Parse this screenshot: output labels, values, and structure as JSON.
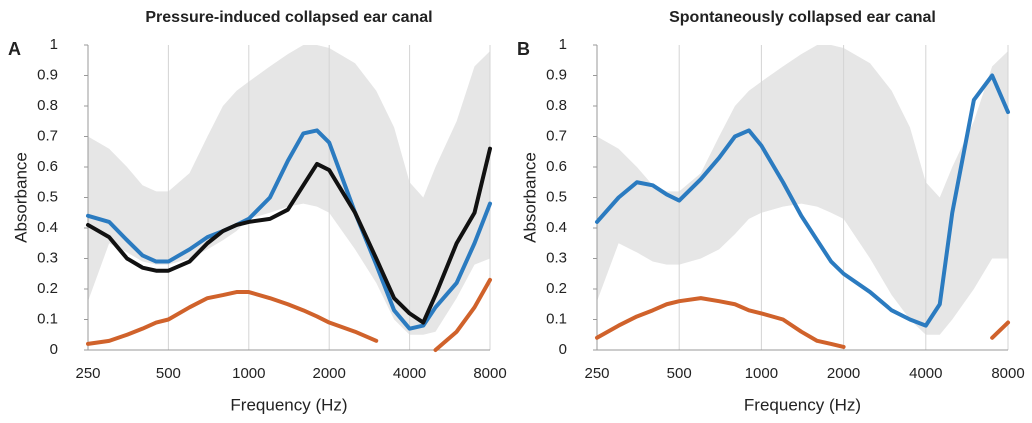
{
  "chart_data": [
    {
      "type": "line",
      "title": "Pressure-induced collapsed ear canal",
      "panel": "A",
      "xlabel": "Frequency (Hz)",
      "ylabel": "Absorbance",
      "xscale": "log",
      "grid": "x",
      "x": [
        250,
        300,
        350,
        400,
        450,
        500,
        600,
        700,
        800,
        900,
        1000,
        1200,
        1400,
        1600,
        1800,
        2000,
        2500,
        3000,
        3500,
        4000,
        4500,
        5000,
        6000,
        7000,
        8000
      ],
      "xlim": [
        250,
        8000
      ],
      "xticks": [
        250,
        500,
        1000,
        2000,
        4000,
        8000
      ],
      "ylim": [
        0,
        1
      ],
      "yticks": [
        0,
        0.1,
        0.2,
        0.3,
        0.4,
        0.5,
        0.6,
        0.7,
        0.8,
        0.9,
        1
      ],
      "band": {
        "color": "#e6e6e6",
        "lower": [
          0.16,
          0.35,
          0.32,
          0.29,
          0.28,
          0.28,
          0.3,
          0.33,
          0.36,
          0.39,
          0.43,
          0.45,
          0.47,
          0.48,
          0.47,
          0.45,
          0.33,
          0.22,
          0.1,
          0.05,
          0.05,
          0.06,
          0.17,
          0.28,
          0.3
        ],
        "upper": [
          0.7,
          0.66,
          0.6,
          0.54,
          0.52,
          0.52,
          0.58,
          0.7,
          0.8,
          0.85,
          0.88,
          0.93,
          0.97,
          1.0,
          1.0,
          0.99,
          0.94,
          0.85,
          0.73,
          0.55,
          0.5,
          0.6,
          0.75,
          0.93,
          0.98
        ]
      },
      "series": [
        {
          "color": "#2b7bc0",
          "values": [
            0.44,
            0.42,
            0.36,
            0.31,
            0.29,
            0.29,
            0.33,
            0.37,
            0.39,
            0.41,
            0.43,
            0.5,
            0.62,
            0.71,
            0.72,
            0.68,
            0.45,
            0.28,
            0.13,
            0.07,
            0.08,
            0.14,
            0.22,
            0.35,
            0.48
          ]
        },
        {
          "color": "#111111",
          "values": [
            0.41,
            0.37,
            0.3,
            0.27,
            0.26,
            0.26,
            0.29,
            0.35,
            0.39,
            0.41,
            0.42,
            0.43,
            0.46,
            0.54,
            0.61,
            0.59,
            0.45,
            0.3,
            0.17,
            0.12,
            0.09,
            0.18,
            0.35,
            0.45,
            0.66
          ]
        },
        {
          "color": "#d0622b",
          "values": [
            0.02,
            0.03,
            0.05,
            0.07,
            0.09,
            0.1,
            0.14,
            0.17,
            0.18,
            0.19,
            0.19,
            0.17,
            0.15,
            0.13,
            0.11,
            0.09,
            0.06,
            0.03,
            null,
            null,
            null,
            0.0,
            0.06,
            0.14,
            0.23
          ]
        }
      ]
    },
    {
      "type": "line",
      "title": "Spontaneously collapsed ear canal",
      "panel": "B",
      "xlabel": "Frequency (Hz)",
      "ylabel": "Absorbance",
      "xscale": "log",
      "grid": "x",
      "x": [
        250,
        300,
        350,
        400,
        450,
        500,
        600,
        700,
        800,
        900,
        1000,
        1200,
        1400,
        1600,
        1800,
        2000,
        2500,
        3000,
        3500,
        4000,
        4500,
        5000,
        6000,
        7000,
        8000
      ],
      "xlim": [
        250,
        8000
      ],
      "xticks": [
        250,
        500,
        1000,
        2000,
        4000,
        8000
      ],
      "ylim": [
        0,
        1
      ],
      "yticks": [
        0,
        0.1,
        0.2,
        0.3,
        0.4,
        0.5,
        0.6,
        0.7,
        0.8,
        0.9,
        1
      ],
      "band": {
        "color": "#e6e6e6",
        "lower": [
          0.16,
          0.35,
          0.32,
          0.29,
          0.28,
          0.28,
          0.3,
          0.33,
          0.38,
          0.43,
          0.45,
          0.47,
          0.48,
          0.47,
          0.45,
          0.43,
          0.3,
          0.18,
          0.1,
          0.05,
          0.05,
          0.1,
          0.2,
          0.3,
          0.3
        ],
        "upper": [
          0.7,
          0.66,
          0.6,
          0.54,
          0.52,
          0.52,
          0.58,
          0.7,
          0.8,
          0.85,
          0.88,
          0.93,
          0.97,
          1.0,
          1.0,
          0.99,
          0.94,
          0.85,
          0.73,
          0.55,
          0.5,
          0.6,
          0.75,
          0.93,
          0.98
        ]
      },
      "series": [
        {
          "color": "#2b7bc0",
          "values": [
            0.42,
            0.5,
            0.55,
            0.54,
            0.51,
            0.49,
            0.56,
            0.63,
            0.7,
            0.72,
            0.67,
            0.55,
            0.44,
            0.36,
            0.29,
            0.25,
            0.19,
            0.13,
            0.1,
            0.08,
            0.15,
            0.45,
            0.82,
            0.9,
            0.78
          ]
        },
        {
          "color": "#d0622b",
          "values": [
            0.04,
            0.08,
            0.11,
            0.13,
            0.15,
            0.16,
            0.17,
            0.16,
            0.15,
            0.13,
            0.12,
            0.1,
            0.06,
            0.03,
            0.02,
            0.01,
            null,
            null,
            null,
            null,
            null,
            null,
            null,
            0.04,
            0.09
          ]
        }
      ]
    }
  ]
}
